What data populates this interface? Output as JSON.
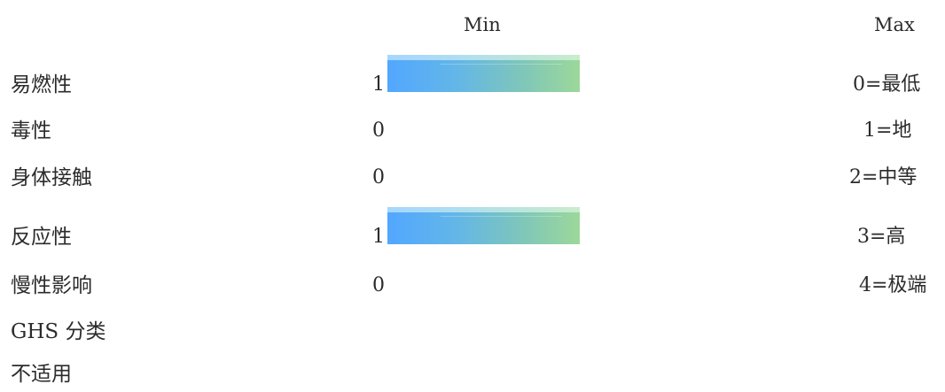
{
  "header": {
    "min_label": "Min",
    "max_label": "Max"
  },
  "rows": [
    {
      "label": "易燃性",
      "value": "1",
      "level": 1,
      "scale": "0=最低"
    },
    {
      "label": "毒性",
      "value": "0",
      "level": 0,
      "scale": "1=地"
    },
    {
      "label": "身体接触",
      "value": "0",
      "level": 0,
      "scale": "2=中等"
    },
    {
      "label": "反应性",
      "value": "1",
      "level": 1,
      "scale": "3=高"
    },
    {
      "label": "慢性影响",
      "value": "0",
      "level": 0,
      "scale": "4=极端"
    }
  ],
  "ghs": {
    "title": "GHS 分类",
    "value": "不适用"
  },
  "colors": {
    "bar_start": "#52a7ff",
    "bar_end": "#9cd89a"
  }
}
